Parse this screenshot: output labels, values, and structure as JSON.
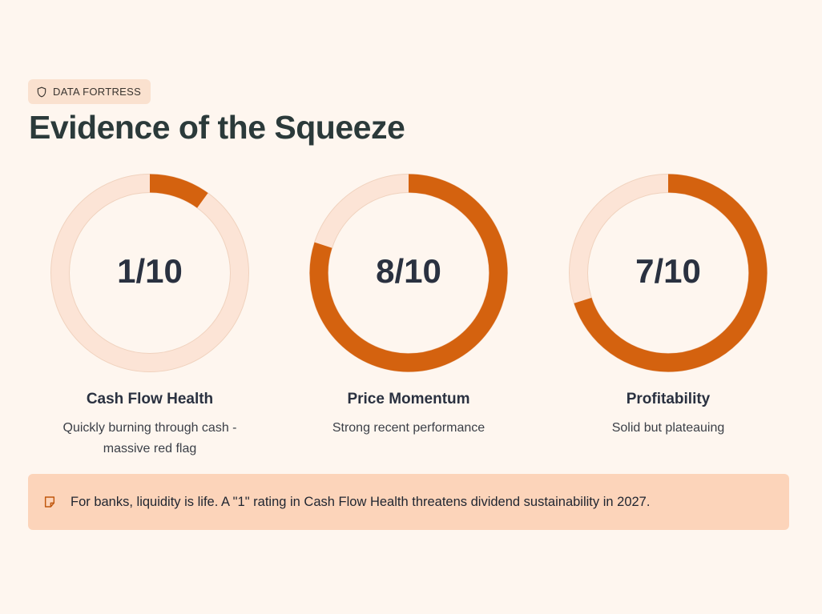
{
  "badge": {
    "icon": "shield-icon",
    "label": "DATA FORTRESS"
  },
  "title": "Evidence of the Squeeze",
  "colors": {
    "accent": "#D4620F",
    "track": "#FCE4D6",
    "background": "#FEF6EF",
    "note_bg": "#FCD4BA"
  },
  "chart_data": [
    {
      "type": "donut",
      "title": "Cash Flow Health",
      "value": 1,
      "max": 10,
      "value_label": "1/10",
      "description": "Quickly burning through cash - massive red flag"
    },
    {
      "type": "donut",
      "title": "Price Momentum",
      "value": 8,
      "max": 10,
      "value_label": "8/10",
      "description": "Strong recent performance"
    },
    {
      "type": "donut",
      "title": "Profitability",
      "value": 7,
      "max": 10,
      "value_label": "7/10",
      "description": "Solid but plateauing"
    }
  ],
  "note": {
    "icon": "note-icon",
    "text": "For banks, liquidity is life. A \"1\" rating in Cash Flow Health threatens dividend sustainability in 2027."
  }
}
